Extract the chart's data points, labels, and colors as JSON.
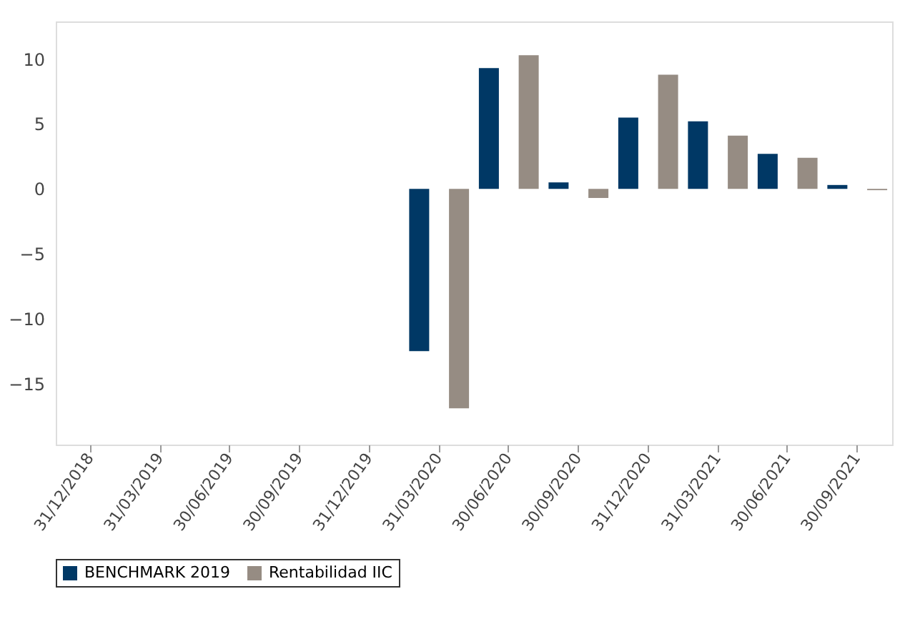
{
  "chart_data": {
    "type": "bar",
    "categories": [
      "31/12/2018",
      "31/03/2019",
      "30/06/2019",
      "30/09/2019",
      "31/12/2019",
      "31/03/2020",
      "30/06/2020",
      "30/09/2020",
      "31/12/2020",
      "31/03/2021",
      "30/06/2021",
      "30/09/2021"
    ],
    "series": [
      {
        "name": "BENCHMARK 2019",
        "color": "#003865",
        "values": [
          null,
          null,
          null,
          null,
          null,
          -12.5,
          9.3,
          0.5,
          5.5,
          5.2,
          2.7,
          0.3
        ]
      },
      {
        "name": "Rentabilidad IIC",
        "color": "#968c83",
        "values": [
          null,
          null,
          null,
          null,
          null,
          -16.9,
          10.3,
          -0.7,
          8.8,
          4.1,
          2.4,
          -0.1
        ]
      }
    ],
    "ylim": [
      -19.7,
      12.9
    ],
    "yticks": [
      -15,
      -10,
      -5,
      0,
      5,
      10
    ],
    "grid": false,
    "legend": "bottom"
  }
}
